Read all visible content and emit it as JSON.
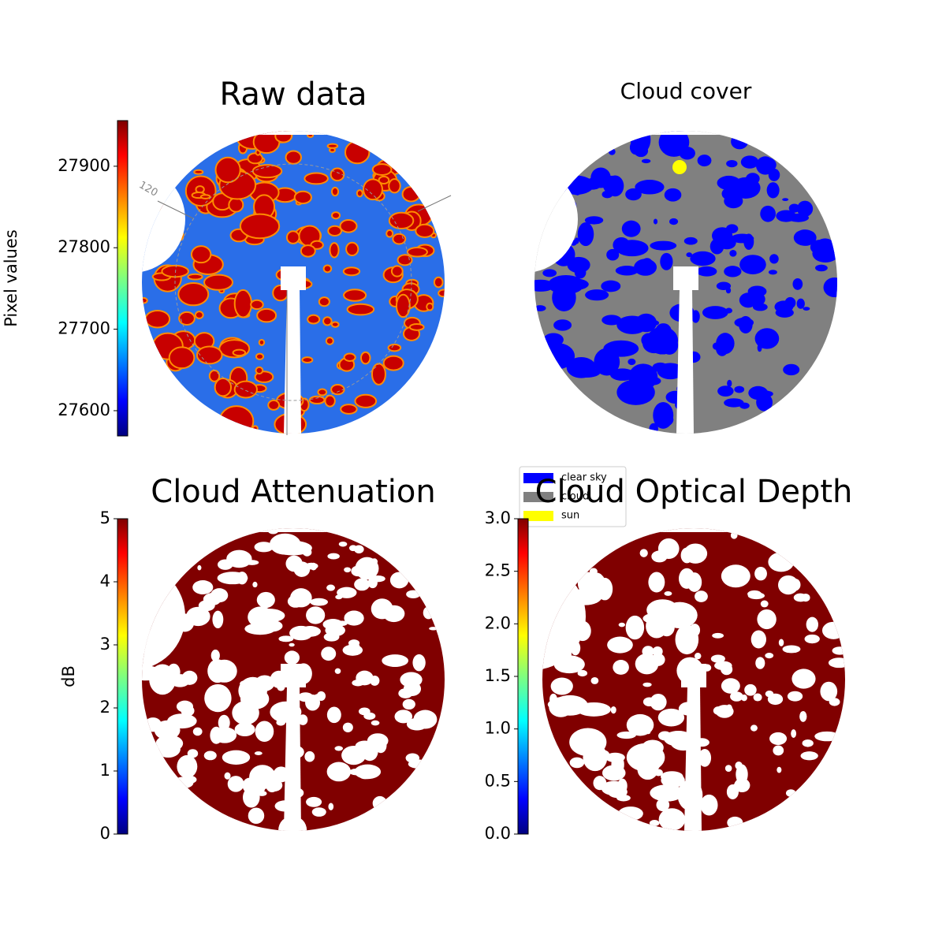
{
  "chart_data": [
    {
      "type": "image",
      "title": "Raw data",
      "annotations": [
        "120"
      ],
      "colorbar": {
        "label": "Pixel values",
        "colormap": "jet",
        "lim": [
          27569,
          27956
        ],
        "ticks": [
          27600,
          27700,
          27800,
          27900
        ]
      }
    },
    {
      "type": "image",
      "title": "Cloud cover",
      "legend": {
        "series": [
          {
            "name": "clear sky",
            "color": "#0000ff"
          },
          {
            "name": "cloud",
            "color": "#808080"
          },
          {
            "name": "sun",
            "color": "#ffff00"
          }
        ]
      }
    },
    {
      "type": "image",
      "title": "Cloud Attenuation",
      "colorbar": {
        "label": "dB",
        "colormap": "jet",
        "lim": [
          0,
          5
        ],
        "ticks": [
          0,
          1,
          2,
          3,
          4,
          5
        ]
      }
    },
    {
      "type": "image",
      "title": "Cloud Optical Depth",
      "colorbar": {
        "colormap": "jet",
        "lim": [
          0,
          3
        ],
        "ticks": [
          {
            "value": 0,
            "label": "0.0"
          },
          0.5,
          {
            "value": 1,
            "label": "1.0"
          },
          1.5,
          {
            "value": 2,
            "label": "2.0"
          },
          2.5,
          {
            "value": 3,
            "label": "3.0"
          }
        ]
      }
    }
  ]
}
